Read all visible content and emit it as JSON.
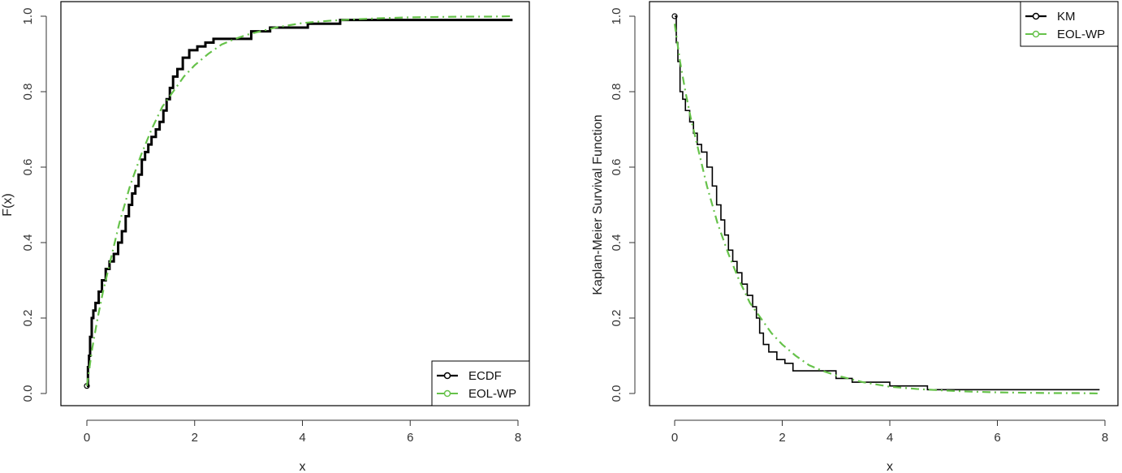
{
  "chart_data": [
    {
      "type": "line",
      "xlabel": "x",
      "ylabel": "F(x)",
      "xlim": [
        0,
        8
      ],
      "ylim": [
        0,
        1
      ],
      "xticks": [
        "0",
        "2",
        "4",
        "6",
        "8"
      ],
      "yticks": [
        "0.0",
        "0.2",
        "0.4",
        "0.6",
        "0.8",
        "1.0"
      ],
      "legend_position": "bottom-right",
      "series": [
        {
          "name": "ECDF",
          "style": "step",
          "color": "#000000",
          "x": [
            0.0,
            0.02,
            0.04,
            0.06,
            0.09,
            0.12,
            0.16,
            0.22,
            0.28,
            0.35,
            0.42,
            0.5,
            0.58,
            0.65,
            0.72,
            0.78,
            0.84,
            0.9,
            0.96,
            1.02,
            1.08,
            1.14,
            1.2,
            1.28,
            1.35,
            1.42,
            1.48,
            1.54,
            1.6,
            1.68,
            1.78,
            1.9,
            2.05,
            2.2,
            2.35,
            2.6,
            3.05,
            3.4,
            3.6,
            4.1,
            4.7,
            7.9
          ],
          "y": [
            0.02,
            0.07,
            0.1,
            0.15,
            0.2,
            0.22,
            0.24,
            0.27,
            0.3,
            0.33,
            0.35,
            0.37,
            0.4,
            0.43,
            0.47,
            0.5,
            0.53,
            0.55,
            0.58,
            0.62,
            0.64,
            0.66,
            0.68,
            0.7,
            0.72,
            0.75,
            0.78,
            0.81,
            0.84,
            0.86,
            0.89,
            0.91,
            0.92,
            0.93,
            0.94,
            0.94,
            0.96,
            0.97,
            0.97,
            0.98,
            0.99,
            0.99
          ]
        },
        {
          "name": "EOL-WP",
          "style": "dot-dash",
          "color": "#66c24a",
          "x": [
            0.0,
            0.1,
            0.2,
            0.3,
            0.4,
            0.5,
            0.6,
            0.7,
            0.8,
            0.9,
            1.0,
            1.2,
            1.4,
            1.6,
            1.8,
            2.0,
            2.25,
            2.5,
            2.75,
            3.0,
            3.5,
            4.0,
            4.5,
            5.0,
            5.5,
            6.0,
            6.5,
            7.0,
            7.5,
            7.9
          ],
          "y": [
            0.02,
            0.12,
            0.2,
            0.27,
            0.33,
            0.39,
            0.45,
            0.5,
            0.55,
            0.59,
            0.63,
            0.7,
            0.76,
            0.8,
            0.84,
            0.87,
            0.9,
            0.925,
            0.94,
            0.952,
            0.97,
            0.982,
            0.988,
            0.992,
            0.995,
            0.997,
            0.998,
            0.999,
            0.999,
            1.0
          ]
        }
      ]
    },
    {
      "type": "line",
      "xlabel": "x",
      "ylabel": "Kaplan-Meier Survival Function",
      "xlim": [
        0,
        8
      ],
      "ylim": [
        0,
        1
      ],
      "xticks": [
        "0",
        "2",
        "4",
        "6",
        "8"
      ],
      "yticks": [
        "0.0",
        "0.2",
        "0.4",
        "0.6",
        "0.8",
        "1.0"
      ],
      "legend_position": "top-right",
      "series": [
        {
          "name": "KM",
          "style": "step",
          "color": "#000000",
          "x": [
            0.0,
            0.03,
            0.06,
            0.1,
            0.15,
            0.2,
            0.28,
            0.35,
            0.42,
            0.5,
            0.6,
            0.7,
            0.78,
            0.86,
            0.93,
            1.0,
            1.08,
            1.16,
            1.25,
            1.35,
            1.45,
            1.52,
            1.58,
            1.65,
            1.75,
            1.9,
            2.05,
            2.2,
            2.5,
            3.0,
            3.3,
            3.5,
            4.0,
            4.7,
            7.9
          ],
          "y": [
            1.0,
            0.93,
            0.88,
            0.8,
            0.78,
            0.75,
            0.72,
            0.69,
            0.66,
            0.64,
            0.6,
            0.55,
            0.5,
            0.46,
            0.42,
            0.38,
            0.35,
            0.32,
            0.29,
            0.26,
            0.23,
            0.2,
            0.16,
            0.13,
            0.11,
            0.09,
            0.08,
            0.06,
            0.06,
            0.04,
            0.03,
            0.03,
            0.02,
            0.01,
            0.01
          ]
        },
        {
          "name": "EOL-WP",
          "style": "dot-dash",
          "color": "#66c24a",
          "x": [
            0.0,
            0.1,
            0.2,
            0.3,
            0.4,
            0.5,
            0.6,
            0.7,
            0.8,
            0.9,
            1.0,
            1.2,
            1.4,
            1.6,
            1.8,
            2.0,
            2.25,
            2.5,
            2.75,
            3.0,
            3.5,
            4.0,
            4.5,
            5.0,
            5.5,
            6.0,
            6.5,
            7.0,
            7.5,
            7.9
          ],
          "y": [
            0.98,
            0.88,
            0.8,
            0.73,
            0.67,
            0.61,
            0.55,
            0.5,
            0.45,
            0.41,
            0.37,
            0.3,
            0.24,
            0.2,
            0.16,
            0.13,
            0.1,
            0.075,
            0.06,
            0.048,
            0.03,
            0.018,
            0.012,
            0.008,
            0.005,
            0.003,
            0.002,
            0.001,
            0.001,
            0.0
          ]
        }
      ]
    }
  ]
}
